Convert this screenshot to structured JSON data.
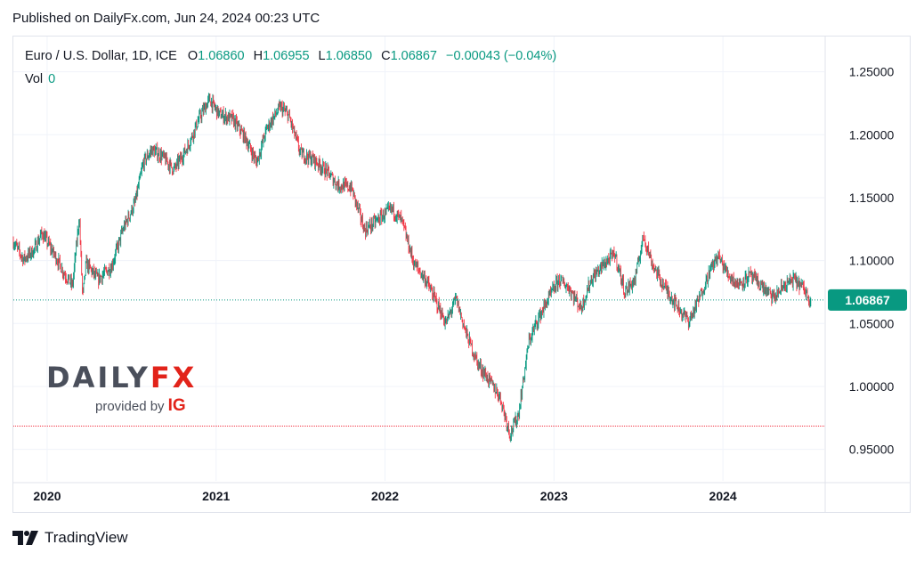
{
  "header": {
    "published": "Published on DailyFx.com, Jun 24, 2024 00:23 UTC"
  },
  "legend": {
    "symbol": "Euro / U.S. Dollar, 1D, ICE",
    "o_label": "O",
    "o_value": "1.06860",
    "h_label": "H",
    "h_value": "1.06955",
    "l_label": "L",
    "l_value": "1.06850",
    "c_label": "C",
    "c_value": "1.06867",
    "change": "−0.00043 (−0.04%)",
    "vol_label": "Vol",
    "vol_value": "0"
  },
  "watermark": {
    "brand_left": "DAILY",
    "brand_right": "FX",
    "provided_by": "provided by",
    "ig": "IG"
  },
  "footer": {
    "tradingview": "TradingView"
  },
  "colors": {
    "up": "#089981",
    "down": "#f23645",
    "price_line": "#089981",
    "low_line": "#f23645",
    "grid": "#f0f3fa"
  },
  "chart_data": {
    "type": "candlestick",
    "title": "Euro / U.S. Dollar, 1D, ICE",
    "instrument": "EUR/USD",
    "timeframe": "1D",
    "last_price": 1.06867,
    "last_price_label": "1.06867",
    "reference_low": 0.9685,
    "ylim": [
      0.925,
      1.278
    ],
    "y_ticks": [
      {
        "value": 1.25,
        "label": "1.25000"
      },
      {
        "value": 1.2,
        "label": "1.20000"
      },
      {
        "value": 1.15,
        "label": "1.15000"
      },
      {
        "value": 1.1,
        "label": "1.10000"
      },
      {
        "value": 1.05,
        "label": "1.05000"
      },
      {
        "value": 1.0,
        "label": "1.00000"
      },
      {
        "value": 0.95,
        "label": "0.95000"
      }
    ],
    "x_range": [
      2019.8,
      2024.6
    ],
    "x_ticks": [
      {
        "value": 2020.0,
        "label": "2020"
      },
      {
        "value": 2021.0,
        "label": "2021"
      },
      {
        "value": 2022.0,
        "label": "2022"
      },
      {
        "value": 2023.0,
        "label": "2023"
      },
      {
        "value": 2024.0,
        "label": "2024"
      }
    ],
    "price_path": [
      [
        2019.8,
        1.115
      ],
      [
        2019.86,
        1.101
      ],
      [
        2019.92,
        1.108
      ],
      [
        2019.97,
        1.122
      ],
      [
        2020.05,
        1.103
      ],
      [
        2020.1,
        1.09
      ],
      [
        2020.15,
        1.08
      ],
      [
        2020.19,
        1.135
      ],
      [
        2020.21,
        1.07
      ],
      [
        2020.23,
        1.098
      ],
      [
        2020.3,
        1.085
      ],
      [
        2020.38,
        1.095
      ],
      [
        2020.45,
        1.125
      ],
      [
        2020.52,
        1.146
      ],
      [
        2020.57,
        1.178
      ],
      [
        2020.62,
        1.188
      ],
      [
        2020.68,
        1.183
      ],
      [
        2020.75,
        1.172
      ],
      [
        2020.83,
        1.19
      ],
      [
        2020.9,
        1.213
      ],
      [
        2020.96,
        1.228
      ],
      [
        2021.02,
        1.216
      ],
      [
        2021.1,
        1.212
      ],
      [
        2021.17,
        1.198
      ],
      [
        2021.24,
        1.178
      ],
      [
        2021.3,
        1.205
      ],
      [
        2021.38,
        1.222
      ],
      [
        2021.43,
        1.215
      ],
      [
        2021.5,
        1.185
      ],
      [
        2021.58,
        1.18
      ],
      [
        2021.66,
        1.17
      ],
      [
        2021.72,
        1.16
      ],
      [
        2021.8,
        1.158
      ],
      [
        2021.88,
        1.124
      ],
      [
        2021.97,
        1.134
      ],
      [
        2022.04,
        1.141
      ],
      [
        2022.1,
        1.131
      ],
      [
        2022.17,
        1.098
      ],
      [
        2022.24,
        1.085
      ],
      [
        2022.3,
        1.068
      ],
      [
        2022.36,
        1.05
      ],
      [
        2022.42,
        1.07
      ],
      [
        2022.48,
        1.042
      ],
      [
        2022.55,
        1.018
      ],
      [
        2022.62,
        1.004
      ],
      [
        2022.68,
        0.992
      ],
      [
        2022.74,
        0.962
      ],
      [
        2022.79,
        0.978
      ],
      [
        2022.85,
        1.035
      ],
      [
        2022.9,
        1.052
      ],
      [
        2022.96,
        1.068
      ],
      [
        2023.03,
        1.085
      ],
      [
        2023.09,
        1.078
      ],
      [
        2023.16,
        1.062
      ],
      [
        2023.22,
        1.085
      ],
      [
        2023.3,
        1.098
      ],
      [
        2023.36,
        1.105
      ],
      [
        2023.42,
        1.075
      ],
      [
        2023.48,
        1.085
      ],
      [
        2023.53,
        1.12
      ],
      [
        2023.58,
        1.098
      ],
      [
        2023.64,
        1.082
      ],
      [
        2023.7,
        1.07
      ],
      [
        2023.76,
        1.058
      ],
      [
        2023.8,
        1.052
      ],
      [
        2023.86,
        1.07
      ],
      [
        2023.92,
        1.091
      ],
      [
        2023.97,
        1.104
      ],
      [
        2024.03,
        1.089
      ],
      [
        2024.09,
        1.081
      ],
      [
        2024.16,
        1.088
      ],
      [
        2024.22,
        1.081
      ],
      [
        2024.3,
        1.07
      ],
      [
        2024.36,
        1.08
      ],
      [
        2024.42,
        1.085
      ],
      [
        2024.47,
        1.079
      ],
      [
        2024.52,
        1.069
      ]
    ]
  }
}
